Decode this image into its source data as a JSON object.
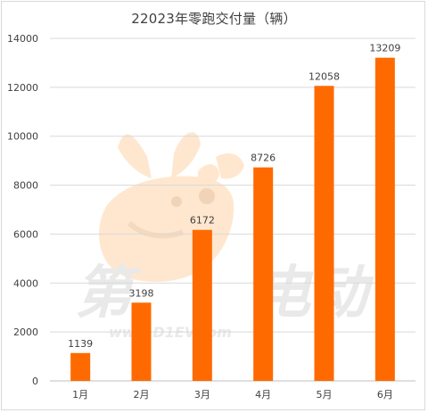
{
  "watermark": {
    "left_text": "第",
    "right_text": "电动",
    "url_text": "www.D1EV.com"
  },
  "colors": {
    "bar": "#ff6a00",
    "grid": "#d9d9d9",
    "axis": "#bfbfbf",
    "text": "#404040",
    "watermark_mascot": "#ffe6cc"
  },
  "chart_data": {
    "type": "bar",
    "title": "22023年零跑交付量（辆）",
    "categories": [
      "1月",
      "2月",
      "3月",
      "4月",
      "5月",
      "6月"
    ],
    "series": [
      {
        "values": [
          1139,
          3198,
          6172,
          8726,
          12058,
          13209
        ]
      }
    ],
    "xlabel": "",
    "ylabel": "",
    "ylim": [
      0,
      14000
    ],
    "yticks": [
      0,
      2000,
      4000,
      6000,
      8000,
      10000,
      12000,
      14000
    ],
    "grid": true,
    "legend": "none",
    "data_labels": true
  }
}
